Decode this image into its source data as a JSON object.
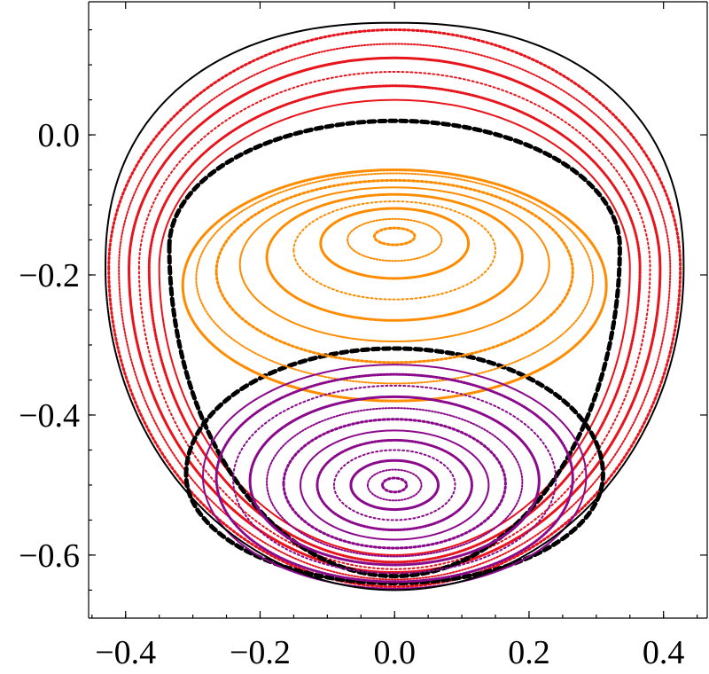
{
  "chart_data": {
    "type": "scatter",
    "title": "",
    "xlabel": "",
    "ylabel": "",
    "xlim": [
      -0.455,
      0.465
    ],
    "ylim": [
      -0.69,
      0.19
    ],
    "xticks": [
      -0.4,
      -0.2,
      0.0,
      0.2,
      0.4
    ],
    "xtick_labels": [
      "−0.4",
      "−0.2",
      "0.0",
      "0.2",
      "0.4"
    ],
    "yticks": [
      0.0,
      -0.2,
      -0.4,
      -0.6
    ],
    "ytick_labels": [
      "0.0",
      "−0.2",
      "−0.4",
      "−0.6"
    ],
    "grid": false,
    "legend": "none",
    "boundary": {
      "color": "#000000",
      "top_y": 0.16,
      "bottom_y": -0.65,
      "x_extent": 0.43
    },
    "series": [
      {
        "color": "#e8141c",
        "description_key": "outer",
        "orbits": [
          {
            "cx": 0.0,
            "cy": -0.19,
            "rx": 0.425,
            "ry_top": 0.34,
            "ry_bottom": 0.455
          },
          {
            "cx": 0.0,
            "cy": -0.19,
            "rx": 0.41,
            "ry_top": 0.32,
            "ry_bottom": 0.445
          },
          {
            "cx": 0.0,
            "cy": -0.19,
            "rx": 0.395,
            "ry_top": 0.3,
            "ry_bottom": 0.435
          },
          {
            "cx": 0.0,
            "cy": -0.19,
            "rx": 0.38,
            "ry_top": 0.28,
            "ry_bottom": 0.43
          },
          {
            "cx": 0.0,
            "cy": -0.19,
            "rx": 0.365,
            "ry_top": 0.26,
            "ry_bottom": 0.42
          },
          {
            "cx": 0.0,
            "cy": -0.19,
            "rx": 0.35,
            "ry_top": 0.24,
            "ry_bottom": 0.41
          }
        ]
      },
      {
        "color": "#000000",
        "description_key": "separatrix",
        "orbits": [
          {
            "cx": 0.0,
            "cy": -0.16,
            "rx": 0.335,
            "ry_top": 0.18,
            "ry_bottom": 0.47
          },
          {
            "cx": 0.0,
            "cy": -0.485,
            "rx": 0.31,
            "ry_top": 0.18,
            "ry_bottom": 0.155
          }
        ]
      },
      {
        "color": "#ff8c00",
        "description_key": "upper-island",
        "center": [
          0.0,
          -0.145
        ],
        "orbits": [
          {
            "cx": 0.0,
            "cy": -0.145,
            "rx": 0.03,
            "ry": 0.012
          },
          {
            "cx": 0.0,
            "cy": -0.15,
            "rx": 0.07,
            "ry": 0.03
          },
          {
            "cx": 0.0,
            "cy": -0.155,
            "rx": 0.11,
            "ry": 0.05
          },
          {
            "cx": 0.0,
            "cy": -0.165,
            "rx": 0.15,
            "ry": 0.07
          },
          {
            "cx": 0.0,
            "cy": -0.175,
            "rx": 0.19,
            "ry": 0.09
          },
          {
            "cx": 0.0,
            "cy": -0.185,
            "rx": 0.23,
            "ry": 0.11
          },
          {
            "cx": 0.0,
            "cy": -0.195,
            "rx": 0.265,
            "ry": 0.13
          },
          {
            "cx": 0.0,
            "cy": -0.205,
            "rx": 0.295,
            "ry": 0.15
          },
          {
            "cx": 0.0,
            "cy": -0.215,
            "rx": 0.315,
            "ry": 0.165
          }
        ]
      },
      {
        "color": "#8b0a8c",
        "description_key": "lower-island",
        "center": [
          0.0,
          -0.5
        ],
        "orbits": [
          {
            "cx": 0.0,
            "cy": -0.5,
            "rx": 0.018,
            "ry": 0.01
          },
          {
            "cx": 0.0,
            "cy": -0.5,
            "rx": 0.04,
            "ry": 0.022
          },
          {
            "cx": 0.0,
            "cy": -0.5,
            "rx": 0.065,
            "ry": 0.035
          },
          {
            "cx": 0.0,
            "cy": -0.5,
            "rx": 0.09,
            "ry": 0.05
          },
          {
            "cx": 0.0,
            "cy": -0.5,
            "rx": 0.115,
            "ry": 0.064
          },
          {
            "cx": 0.0,
            "cy": -0.5,
            "rx": 0.14,
            "ry": 0.078
          },
          {
            "cx": 0.0,
            "cy": -0.498,
            "rx": 0.165,
            "ry": 0.092
          },
          {
            "cx": 0.0,
            "cy": -0.496,
            "rx": 0.19,
            "ry": 0.106
          },
          {
            "cx": 0.0,
            "cy": -0.494,
            "rx": 0.215,
            "ry": 0.12
          },
          {
            "cx": 0.0,
            "cy": -0.492,
            "rx": 0.24,
            "ry": 0.134
          },
          {
            "cx": 0.0,
            "cy": -0.49,
            "rx": 0.265,
            "ry": 0.148
          },
          {
            "cx": 0.0,
            "cy": -0.488,
            "rx": 0.285,
            "ry": 0.16
          }
        ]
      }
    ]
  }
}
